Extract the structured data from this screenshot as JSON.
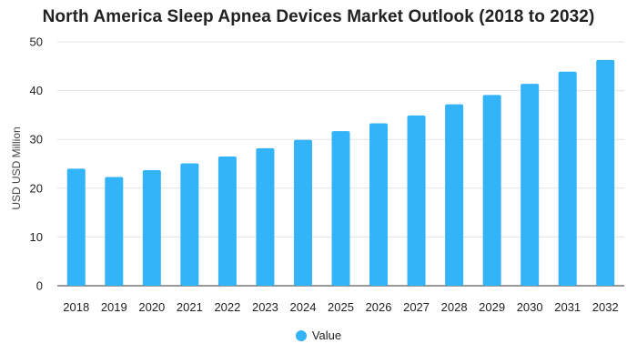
{
  "chart_data": {
    "type": "bar",
    "title": "North America Sleep Apnea Devices Market Outlook (2018 to 2032)",
    "xlabel": "",
    "ylabel": "USD USD Million",
    "ylim": [
      0,
      50
    ],
    "yticks": [
      0,
      10,
      20,
      30,
      40,
      50
    ],
    "grid": true,
    "legend_position": "bottom",
    "categories": [
      "2018",
      "2019",
      "2020",
      "2021",
      "2022",
      "2023",
      "2024",
      "2025",
      "2026",
      "2027",
      "2028",
      "2029",
      "2030",
      "2031",
      "2032"
    ],
    "series": [
      {
        "name": "Value",
        "color": "#33b3f8",
        "values": [
          24.0,
          22.3,
          23.7,
          25.1,
          26.5,
          28.2,
          29.9,
          31.7,
          33.3,
          34.9,
          37.2,
          39.1,
          41.4,
          43.9,
          46.3
        ]
      }
    ]
  }
}
